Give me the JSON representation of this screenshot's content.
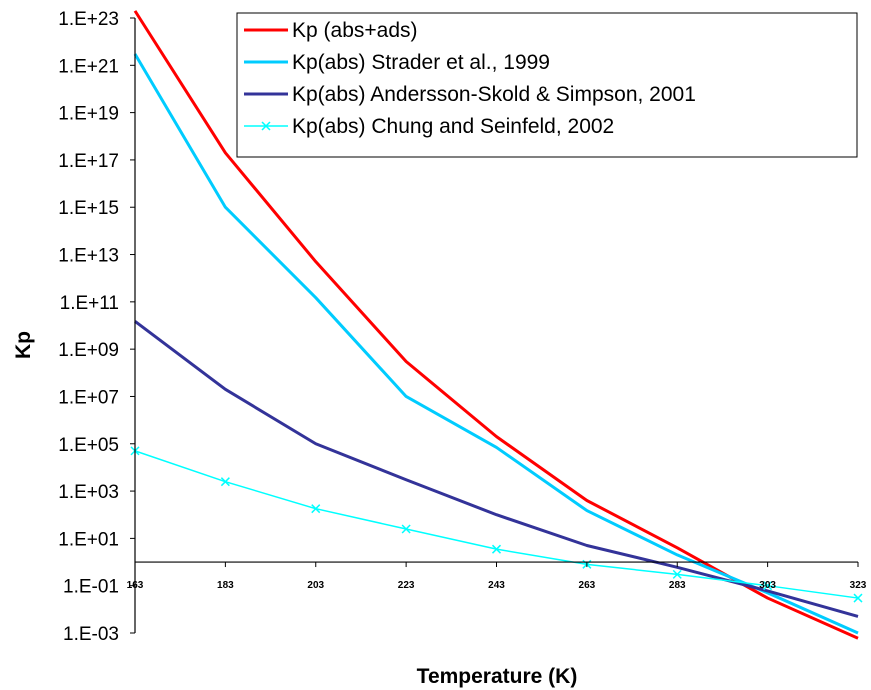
{
  "chart_data": {
    "type": "line",
    "title": "",
    "xlabel": "Temperature (K)",
    "ylabel": "Kp",
    "x": [
      163,
      183,
      203,
      223,
      243,
      263,
      283,
      303,
      323
    ],
    "xlim": [
      163,
      323
    ],
    "x_tick_labels": [
      "163",
      "183",
      "203",
      "223",
      "243",
      "263",
      "283",
      "303",
      "323"
    ],
    "y_scale": "log",
    "ylim": [
      0.001,
      1e+23
    ],
    "y_tick_labels": [
      "1.E+23",
      "1.E+21",
      "1.E+19",
      "1.E+17",
      "1.E+15",
      "1.E+13",
      "1.E+11",
      "1.E+09",
      "1.E+07",
      "1.E+05",
      "1.E+03",
      "1.E+01",
      "1.E-01",
      "1.E-03"
    ],
    "x_axis_crosses_at": 1,
    "grid": false,
    "legend_position": "top-right",
    "series": [
      {
        "name": "Kp (abs+ads)",
        "color": "#ff0000",
        "marker": "none",
        "values": [
          2e+23,
          2e+17,
          5000000000000.0,
          300000000.0,
          200000.0,
          400,
          4,
          0.03,
          0.0006
        ]
      },
      {
        "name": "Kp(abs) Strader et al., 1999",
        "color": "#00ccff",
        "marker": "none",
        "values": [
          3e+21,
          1000000000000000.0,
          150000000000.0,
          10000000.0,
          70000.0,
          150,
          2,
          0.05,
          0.001
        ]
      },
      {
        "name": "Kp(abs) Andersson-Skold & Simpson, 2001",
        "color": "#333399",
        "marker": "none",
        "values": [
          15000000000.0,
          20000000.0,
          100000.0,
          3000,
          100,
          5,
          0.6,
          0.06,
          0.005
        ]
      },
      {
        "name": "Kp(abs) Chung and Seinfeld, 2002",
        "color": "#00ffff",
        "marker": "x",
        "values": [
          50000.0,
          2500,
          180,
          25,
          3.5,
          0.8,
          0.3,
          0.1,
          0.03
        ]
      }
    ]
  }
}
